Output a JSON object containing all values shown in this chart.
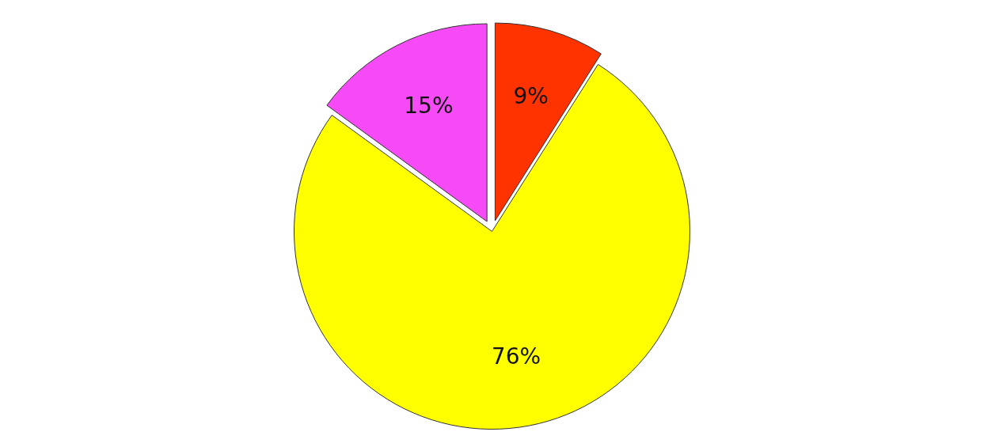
{
  "chart_data": {
    "type": "pie",
    "categories": [
      null,
      null,
      null
    ],
    "values": [
      9,
      76,
      15
    ],
    "colors": [
      "#ff3300",
      "#ffff00",
      "#f54af5"
    ],
    "value_labels": [
      "9%",
      "76%",
      "15%"
    ]
  }
}
